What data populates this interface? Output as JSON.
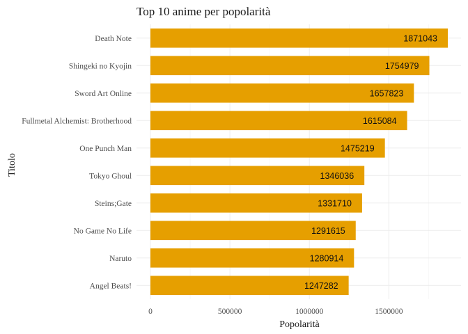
{
  "chart_data": {
    "type": "bar",
    "orientation": "horizontal",
    "title": "Top 10 anime per popolarità",
    "xlabel": "Popolarità",
    "ylabel": "Titolo",
    "categories": [
      "Death Note",
      "Shingeki no Kyojin",
      "Sword Art Online",
      "Fullmetal Alchemist: Brotherhood",
      "One Punch Man",
      "Tokyo Ghoul",
      "Steins;Gate",
      "No Game No Life",
      "Naruto",
      "Angel Beats!"
    ],
    "values": [
      1871043,
      1754979,
      1657823,
      1615084,
      1475219,
      1346036,
      1331710,
      1291615,
      1280914,
      1247282
    ],
    "xticks": [
      0,
      500000,
      1000000,
      1500000
    ],
    "xlim": [
      0,
      1871043
    ],
    "grid": true,
    "bar_color": "#E69F00"
  }
}
